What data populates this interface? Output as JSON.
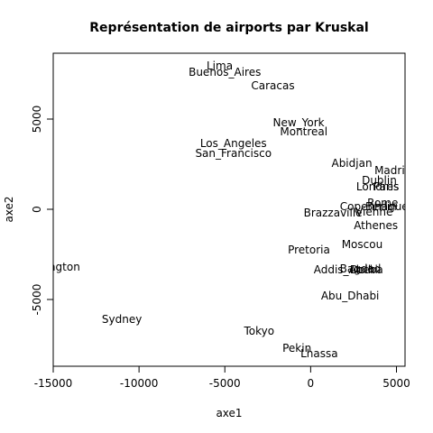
{
  "chart_data": {
    "type": "scatter",
    "title": "Représentation de airports par Kruskal",
    "xlabel": "axe1",
    "ylabel": "axe2",
    "xlim": [
      -15000,
      5500
    ],
    "ylim": [
      -8700,
      8650
    ],
    "xticks": [
      -15000,
      -10000,
      -5000,
      0,
      5000
    ],
    "yticks": [
      -5000,
      0,
      5000
    ],
    "points": [
      {
        "label": "Lima",
        "x": -5300,
        "y": 7950
      },
      {
        "label": "Buenos_Aires",
        "x": -5000,
        "y": 7600
      },
      {
        "label": "Caracas",
        "x": -2200,
        "y": 6850
      },
      {
        "label": "New_York",
        "x": -700,
        "y": 4800
      },
      {
        "label": "Montreal",
        "x": -400,
        "y": 4300
      },
      {
        "label": "Los_Angeles",
        "x": -4500,
        "y": 3650
      },
      {
        "label": "San_Francisco",
        "x": -4500,
        "y": 3100
      },
      {
        "label": "Abidjan",
        "x": 2400,
        "y": 2550
      },
      {
        "label": "Madrid",
        "x": 4800,
        "y": 2150
      },
      {
        "label": "Dublin",
        "x": 4000,
        "y": 1600
      },
      {
        "label": "Londres",
        "x": 3900,
        "y": 1250
      },
      {
        "label": "Paris",
        "x": 4400,
        "y": 1250
      },
      {
        "label": "Rome",
        "x": 4200,
        "y": 350
      },
      {
        "label": "Copenhague",
        "x": 3700,
        "y": 150
      },
      {
        "label": "Berlin",
        "x": 4100,
        "y": 150
      },
      {
        "label": "Brazzaville",
        "x": 1300,
        "y": -200
      },
      {
        "label": "Vienne",
        "x": 3700,
        "y": -150
      },
      {
        "label": "Athenes",
        "x": 3800,
        "y": -900
      },
      {
        "label": "Moscou",
        "x": 3000,
        "y": -1950
      },
      {
        "label": "Pretoria",
        "x": -100,
        "y": -2250
      },
      {
        "label": "Bagdad",
        "x": 2900,
        "y": -3300
      },
      {
        "label": "Addis_Abeba",
        "x": 2200,
        "y": -3350
      },
      {
        "label": "Delhi",
        "x": 3100,
        "y": -3350
      },
      {
        "label": "Abu_Dhabi",
        "x": 2300,
        "y": -4800
      },
      {
        "label": "Wellington",
        "x": -15100,
        "y": -3200
      },
      {
        "label": "Sydney",
        "x": -11000,
        "y": -6100
      },
      {
        "label": "Tokyo",
        "x": -3000,
        "y": -6750
      },
      {
        "label": "Pekin",
        "x": -800,
        "y": -7700
      },
      {
        "label": "Lhassa",
        "x": 500,
        "y": -8000
      }
    ]
  }
}
